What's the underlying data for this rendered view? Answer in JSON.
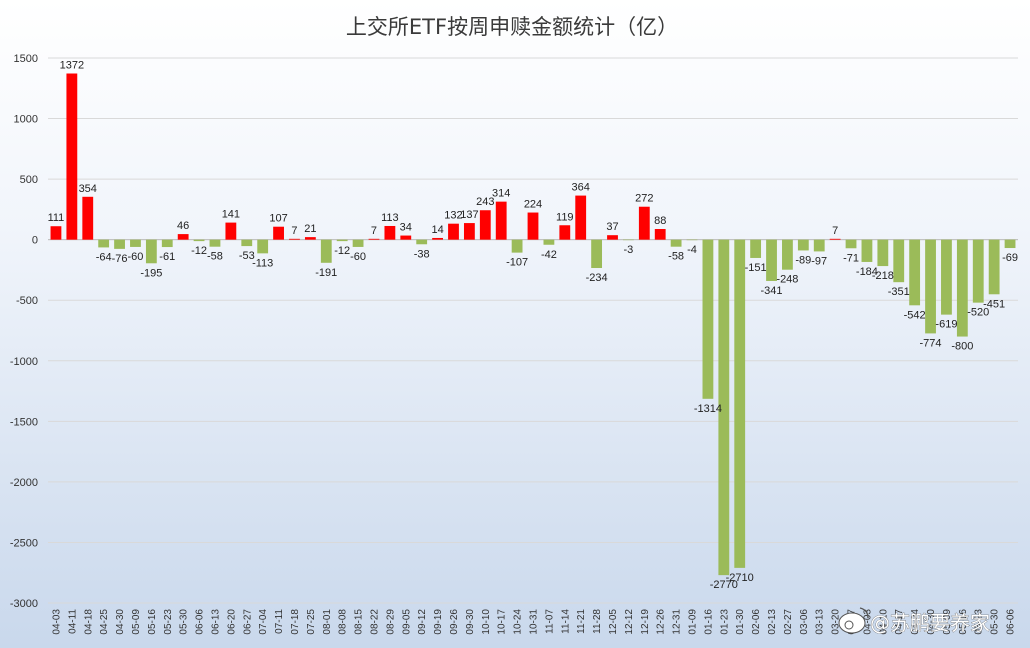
{
  "chart_data": {
    "type": "bar",
    "title": "上交所ETF按周申赎金额统计（亿）",
    "xlabel": "",
    "ylabel": "",
    "ylim": [
      -3000,
      1500
    ],
    "yticks": [
      1500,
      1000,
      500,
      0,
      -500,
      -1000,
      -1500,
      -2000,
      -2500,
      -3000
    ],
    "grid": true,
    "legend": "none",
    "colors": {
      "positive": "#ff0000",
      "negative": "#9bbb59"
    },
    "categories": [
      "04-03",
      "04-11",
      "04-18",
      "04-25",
      "04-30",
      "05-09",
      "05-16",
      "05-23",
      "05-30",
      "06-06",
      "06-13",
      "06-20",
      "06-27",
      "07-04",
      "07-11",
      "07-18",
      "07-25",
      "08-01",
      "08-08",
      "08-15",
      "08-22",
      "08-29",
      "09-05",
      "09-12",
      "09-19",
      "09-26",
      "09-30",
      "10-10",
      "10-17",
      "10-24",
      "10-31",
      "11-07",
      "11-14",
      "11-21",
      "11-28",
      "12-05",
      "12-12",
      "12-19",
      "12-26",
      "12-31",
      "01-09",
      "01-16",
      "01-23",
      "01-30",
      "02-06",
      "02-13",
      "02-27",
      "03-06",
      "03-13",
      "03-20",
      "03-27",
      "04-03",
      "04-10",
      "04-17",
      "04-24",
      "04-30",
      "05-09",
      "05-16",
      "05-23",
      "05-30",
      "06-06"
    ],
    "values": [
      111,
      1372,
      354,
      -64,
      -76,
      -60,
      -195,
      -61,
      46,
      -12,
      -58,
      141,
      -53,
      -113,
      107,
      7,
      21,
      -191,
      -12,
      -60,
      7,
      113,
      34,
      -38,
      14,
      132,
      137,
      243,
      314,
      -107,
      224,
      -42,
      119,
      364,
      -234,
      37,
      -3,
      272,
      88,
      -58,
      -4,
      -1314,
      -2770,
      -2710,
      -151,
      -341,
      -248,
      -89,
      -97,
      7,
      -71,
      -184,
      -218,
      -351,
      -542,
      -774,
      -619,
      -800,
      -520,
      -451,
      -69
    ]
  },
  "watermark": {
    "icon": "weibo-logo",
    "text": "@苏鹏要养家"
  }
}
